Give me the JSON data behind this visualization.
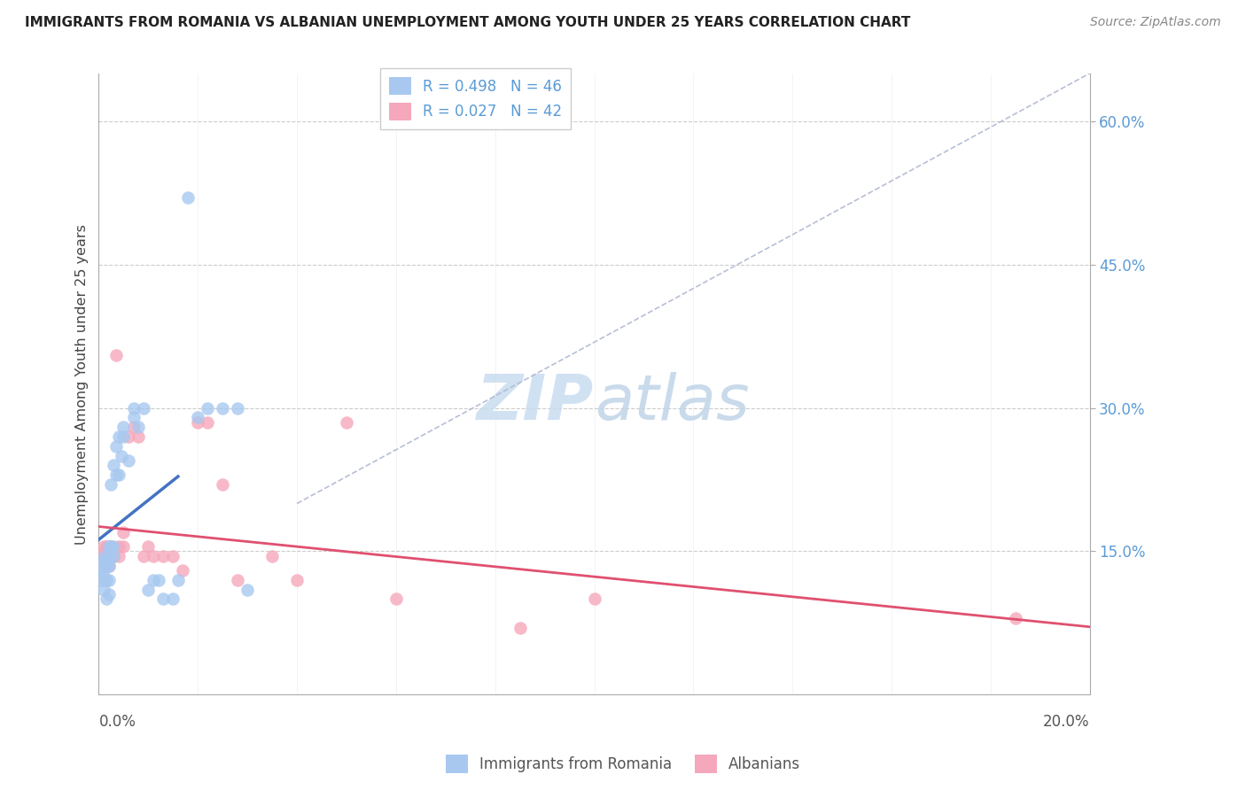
{
  "title": "IMMIGRANTS FROM ROMANIA VS ALBANIAN UNEMPLOYMENT AMONG YOUTH UNDER 25 YEARS CORRELATION CHART",
  "source": "Source: ZipAtlas.com",
  "ylabel": "Unemployment Among Youth under 25 years",
  "y_tick_values": [
    0.15,
    0.3,
    0.45,
    0.6
  ],
  "y_tick_labels": [
    "15.0%",
    "30.0%",
    "45.0%",
    "60.0%"
  ],
  "xlim": [
    0.0,
    0.2
  ],
  "ylim": [
    0.0,
    0.65
  ],
  "R_romania": 0.498,
  "N_romania": 46,
  "R_albanians": 0.027,
  "N_albanians": 42,
  "color_romania": "#A8C8F0",
  "color_albanians": "#F5A8BB",
  "color_romania_line": "#4472C4",
  "color_albanians_line": "#E05070",
  "color_diagonal": "#B0B8D0",
  "watermark_zip": "ZIP",
  "watermark_atlas": "atlas",
  "romania_x": [
    0.0005,
    0.0007,
    0.0008,
    0.001,
    0.001,
    0.001,
    0.0012,
    0.0012,
    0.0015,
    0.0015,
    0.0015,
    0.0018,
    0.002,
    0.002,
    0.002,
    0.002,
    0.0022,
    0.0025,
    0.0025,
    0.003,
    0.003,
    0.003,
    0.0035,
    0.0035,
    0.004,
    0.004,
    0.0045,
    0.005,
    0.005,
    0.006,
    0.007,
    0.007,
    0.008,
    0.009,
    0.01,
    0.011,
    0.012,
    0.013,
    0.015,
    0.016,
    0.018,
    0.02,
    0.022,
    0.025,
    0.028,
    0.03
  ],
  "romania_y": [
    0.13,
    0.12,
    0.14,
    0.11,
    0.13,
    0.14,
    0.12,
    0.145,
    0.1,
    0.12,
    0.135,
    0.14,
    0.105,
    0.12,
    0.135,
    0.155,
    0.145,
    0.155,
    0.22,
    0.145,
    0.155,
    0.24,
    0.23,
    0.26,
    0.23,
    0.27,
    0.25,
    0.27,
    0.28,
    0.245,
    0.29,
    0.3,
    0.28,
    0.3,
    0.11,
    0.12,
    0.12,
    0.1,
    0.1,
    0.12,
    0.52,
    0.29,
    0.3,
    0.3,
    0.3,
    0.11
  ],
  "albanians_x": [
    0.0005,
    0.0007,
    0.0008,
    0.001,
    0.001,
    0.0012,
    0.0012,
    0.0015,
    0.0015,
    0.0018,
    0.002,
    0.002,
    0.002,
    0.0022,
    0.0025,
    0.003,
    0.003,
    0.0035,
    0.004,
    0.004,
    0.005,
    0.005,
    0.006,
    0.007,
    0.008,
    0.009,
    0.01,
    0.011,
    0.013,
    0.015,
    0.017,
    0.02,
    0.022,
    0.025,
    0.028,
    0.035,
    0.04,
    0.05,
    0.06,
    0.085,
    0.1,
    0.185
  ],
  "albanians_y": [
    0.145,
    0.14,
    0.135,
    0.145,
    0.155,
    0.14,
    0.15,
    0.145,
    0.155,
    0.15,
    0.135,
    0.145,
    0.155,
    0.155,
    0.155,
    0.145,
    0.145,
    0.355,
    0.155,
    0.145,
    0.155,
    0.17,
    0.27,
    0.28,
    0.27,
    0.145,
    0.155,
    0.145,
    0.145,
    0.145,
    0.13,
    0.285,
    0.285,
    0.22,
    0.12,
    0.145,
    0.12,
    0.285,
    0.1,
    0.07,
    0.1,
    0.08
  ]
}
